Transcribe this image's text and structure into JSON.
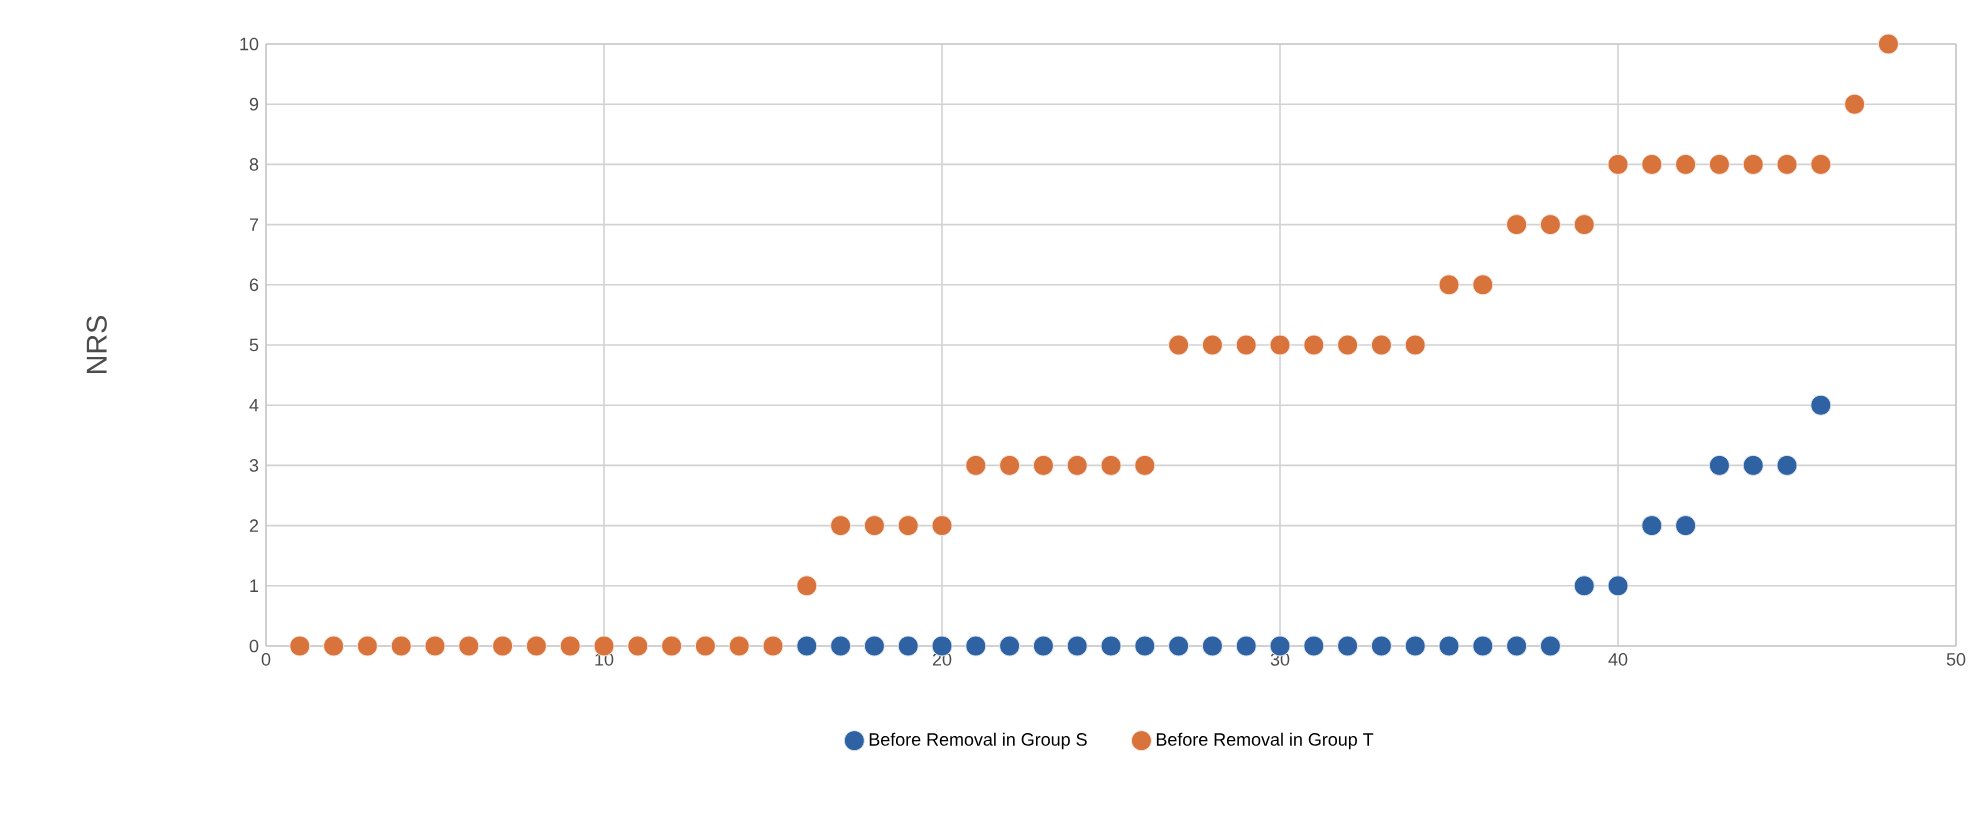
{
  "chart_data": {
    "type": "scatter",
    "ylabel": "NRS",
    "xlim": [
      0,
      50
    ],
    "xticks": [
      0,
      10,
      20,
      30,
      40,
      50
    ],
    "ylim": [
      0,
      10
    ],
    "yticks": [
      0,
      1,
      2,
      3,
      4,
      5,
      6,
      7,
      8,
      9,
      10
    ],
    "grid": true,
    "legend": "bottom",
    "marker": "circle",
    "series": [
      {
        "name": "Before Removal in Group S",
        "color": "#2e62a3",
        "x": [
          16,
          17,
          18,
          19,
          20,
          21,
          22,
          23,
          24,
          25,
          26,
          27,
          28,
          29,
          30,
          31,
          32,
          33,
          34,
          35,
          36,
          37,
          38,
          39,
          40,
          41,
          42,
          43,
          44,
          45,
          46
        ],
        "values": [
          0,
          0,
          0,
          0,
          0,
          0,
          0,
          0,
          0,
          0,
          0,
          0,
          0,
          0,
          0,
          0,
          0,
          0,
          0,
          0,
          0,
          0,
          0,
          1,
          1,
          2,
          2,
          3,
          3,
          3,
          4
        ]
      },
      {
        "name": "Before Removal in Group T",
        "color": "#d8733c",
        "x": [
          1,
          2,
          3,
          4,
          5,
          6,
          7,
          8,
          9,
          10,
          11,
          12,
          13,
          14,
          15,
          16,
          17,
          18,
          19,
          20,
          21,
          22,
          23,
          24,
          25,
          26,
          27,
          28,
          29,
          30,
          31,
          32,
          33,
          34,
          35,
          36,
          37,
          38,
          39,
          40,
          41,
          42,
          43,
          44,
          45,
          46,
          47,
          48
        ],
        "values": [
          0,
          0,
          0,
          0,
          0,
          0,
          0,
          0,
          0,
          0,
          0,
          0,
          0,
          0,
          0,
          1,
          2,
          2,
          2,
          2,
          3,
          3,
          3,
          3,
          3,
          3,
          5,
          5,
          5,
          5,
          5,
          5,
          5,
          5,
          6,
          6,
          7,
          7,
          7,
          8,
          8,
          8,
          8,
          8,
          8,
          8,
          9,
          10
        ]
      }
    ]
  }
}
